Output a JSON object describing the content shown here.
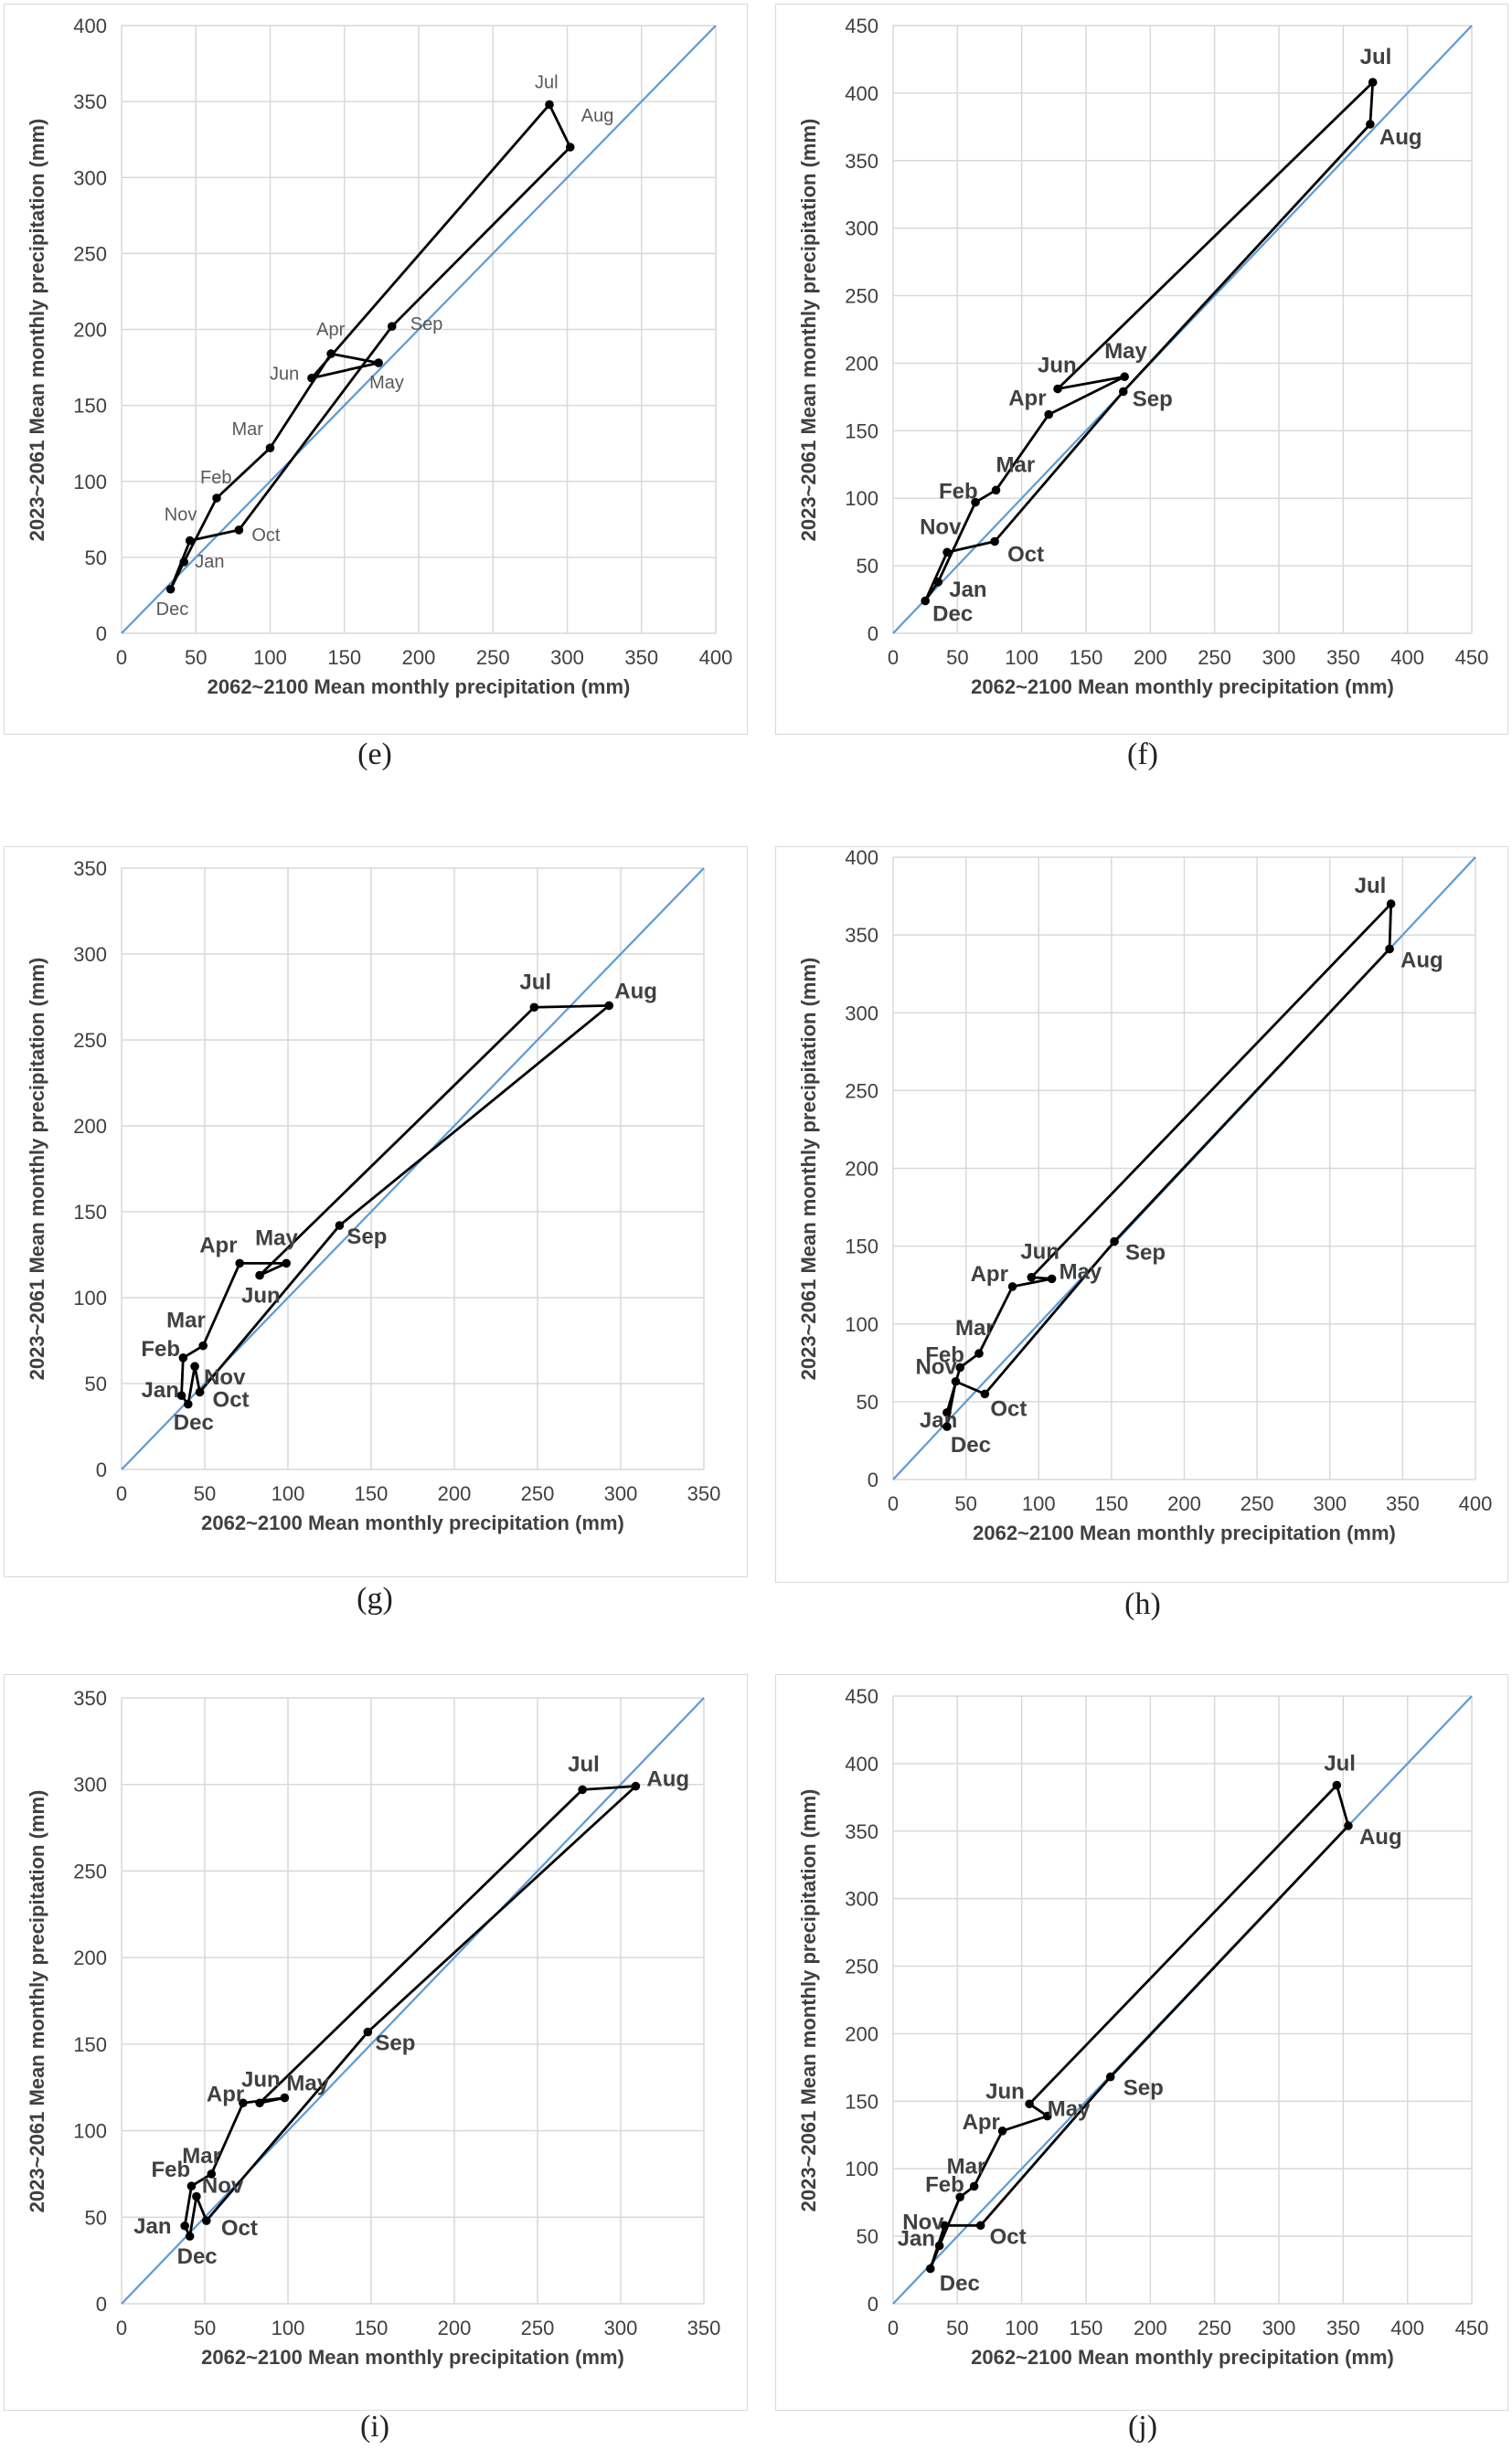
{
  "colors": {
    "grid": "#d9d9d9",
    "diagonal": "#5b9bd5",
    "series": "#000000",
    "axis_text": "#404040"
  },
  "chart_data": [
    {
      "caption": "(e)",
      "type": "scatter",
      "xlabel": "2062~2100 Mean monthly precipitation (mm)",
      "ylabel": "2023~2061 Mean monthly precipitation (mm)",
      "xlim": [
        0,
        400
      ],
      "ylim": [
        0,
        400
      ],
      "step": 50,
      "x_ticks": [
        "0",
        "50",
        "100",
        "150",
        "200",
        "250",
        "300",
        "350",
        "400"
      ],
      "y_ticks": [
        "0",
        "50",
        "100",
        "150",
        "200",
        "250",
        "300",
        "350",
        "400"
      ],
      "label_style": "normal",
      "reference_line": "y = x",
      "points": [
        {
          "label": "Jan",
          "x": 42,
          "y": 47
        },
        {
          "label": "Feb",
          "x": 64,
          "y": 89
        },
        {
          "label": "Mar",
          "x": 100,
          "y": 122
        },
        {
          "label": "Apr",
          "x": 141,
          "y": 184
        },
        {
          "label": "May",
          "x": 173,
          "y": 178
        },
        {
          "label": "Jun",
          "x": 128,
          "y": 168
        },
        {
          "label": "Jul",
          "x": 288,
          "y": 348
        },
        {
          "label": "Aug",
          "x": 302,
          "y": 320
        },
        {
          "label": "Sep",
          "x": 182,
          "y": 202
        },
        {
          "label": "Oct",
          "x": 79,
          "y": 68
        },
        {
          "label": "Nov",
          "x": 46,
          "y": 61
        },
        {
          "label": "Dec",
          "x": 33,
          "y": 29
        }
      ]
    },
    {
      "caption": "(f)",
      "type": "scatter",
      "xlabel": "2062~2100 Mean monthly precipitation (mm)",
      "ylabel": "2023~2061 Mean monthly precipitation (mm)",
      "xlim": [
        0,
        450
      ],
      "ylim": [
        0,
        450
      ],
      "step": 50,
      "x_ticks": [
        "0",
        "50",
        "100",
        "150",
        "200",
        "250",
        "300",
        "350",
        "400",
        "450"
      ],
      "y_ticks": [
        "0",
        "50",
        "100",
        "150",
        "200",
        "250",
        "300",
        "350",
        "400",
        "450"
      ],
      "label_style": "bold",
      "reference_line": "y = x",
      "points": [
        {
          "label": "Jan",
          "x": 35,
          "y": 38
        },
        {
          "label": "Feb",
          "x": 64,
          "y": 97
        },
        {
          "label": "Mar",
          "x": 80,
          "y": 106
        },
        {
          "label": "Apr",
          "x": 121,
          "y": 162
        },
        {
          "label": "May",
          "x": 180,
          "y": 190
        },
        {
          "label": "Jun",
          "x": 128,
          "y": 181
        },
        {
          "label": "Jul",
          "x": 373,
          "y": 408
        },
        {
          "label": "Aug",
          "x": 371,
          "y": 377
        },
        {
          "label": "Sep",
          "x": 179,
          "y": 179
        },
        {
          "label": "Oct",
          "x": 79,
          "y": 68
        },
        {
          "label": "Nov",
          "x": 42,
          "y": 60
        },
        {
          "label": "Dec",
          "x": 25,
          "y": 24
        }
      ]
    },
    {
      "caption": "(g)",
      "type": "scatter",
      "xlabel": "2062~2100 Mean monthly precipitation (mm)",
      "ylabel": "2023~2061 Mean monthly precipitation (mm)",
      "xlim": [
        0,
        350
      ],
      "ylim": [
        0,
        350
      ],
      "step": 50,
      "x_ticks": [
        "0",
        "50",
        "100",
        "150",
        "200",
        "250",
        "300",
        "350"
      ],
      "y_ticks": [
        "0",
        "50",
        "100",
        "150",
        "200",
        "250",
        "300",
        "350"
      ],
      "label_style": "bold",
      "reference_line": "y = x",
      "points": [
        {
          "label": "Jan",
          "x": 36,
          "y": 43
        },
        {
          "label": "Feb",
          "x": 37,
          "y": 65
        },
        {
          "label": "Mar",
          "x": 49,
          "y": 72
        },
        {
          "label": "Apr",
          "x": 71,
          "y": 120
        },
        {
          "label": "May",
          "x": 99,
          "y": 120
        },
        {
          "label": "Jun",
          "x": 83,
          "y": 113
        },
        {
          "label": "Jul",
          "x": 248,
          "y": 269
        },
        {
          "label": "Aug",
          "x": 293,
          "y": 270
        },
        {
          "label": "Sep",
          "x": 131,
          "y": 142
        },
        {
          "label": "Oct",
          "x": 47,
          "y": 45
        },
        {
          "label": "Nov",
          "x": 44,
          "y": 60
        },
        {
          "label": "Dec",
          "x": 40,
          "y": 38
        }
      ]
    },
    {
      "caption": "(h)",
      "type": "scatter",
      "xlabel": "2062~2100 Mean monthly precipitation (mm)",
      "ylabel": "2023~2061 Mean monthly precipitation (mm)",
      "xlim": [
        0,
        400
      ],
      "ylim": [
        0,
        400
      ],
      "step": 50,
      "x_ticks": [
        "0",
        "50",
        "100",
        "150",
        "200",
        "250",
        "300",
        "350",
        "400"
      ],
      "y_ticks": [
        "0",
        "50",
        "100",
        "150",
        "200",
        "250",
        "300",
        "350",
        "400"
      ],
      "label_style": "bold",
      "reference_line": "y = x",
      "points": [
        {
          "label": "Jan",
          "x": 37,
          "y": 43
        },
        {
          "label": "Feb",
          "x": 46,
          "y": 72
        },
        {
          "label": "Mar",
          "x": 59,
          "y": 81
        },
        {
          "label": "Apr",
          "x": 82,
          "y": 124
        },
        {
          "label": "May",
          "x": 109,
          "y": 129
        },
        {
          "label": "Jun",
          "x": 95,
          "y": 130
        },
        {
          "label": "Jul",
          "x": 342,
          "y": 370
        },
        {
          "label": "Aug",
          "x": 341,
          "y": 341
        },
        {
          "label": "Sep",
          "x": 152,
          "y": 153
        },
        {
          "label": "Oct",
          "x": 63,
          "y": 55
        },
        {
          "label": "Nov",
          "x": 43,
          "y": 63
        },
        {
          "label": "Dec",
          "x": 37,
          "y": 34
        }
      ]
    },
    {
      "caption": "(i)",
      "type": "scatter",
      "xlabel": "2062~2100 Mean monthly precipitation (mm)",
      "ylabel": "2023~2061 Mean monthly precipitation (mm)",
      "xlim": [
        0,
        350
      ],
      "ylim": [
        0,
        350
      ],
      "step": 50,
      "x_ticks": [
        "0",
        "50",
        "100",
        "150",
        "200",
        "250",
        "300",
        "350"
      ],
      "y_ticks": [
        "0",
        "50",
        "100",
        "150",
        "200",
        "250",
        "300",
        "350"
      ],
      "label_style": "bold",
      "reference_line": "y = x",
      "points": [
        {
          "label": "Jan",
          "x": 38,
          "y": 45
        },
        {
          "label": "Feb",
          "x": 42,
          "y": 68
        },
        {
          "label": "Mar",
          "x": 54,
          "y": 75
        },
        {
          "label": "Apr",
          "x": 73,
          "y": 116
        },
        {
          "label": "May",
          "x": 98,
          "y": 119
        },
        {
          "label": "Jun",
          "x": 83,
          "y": 116
        },
        {
          "label": "Jul",
          "x": 277,
          "y": 297
        },
        {
          "label": "Aug",
          "x": 309,
          "y": 299
        },
        {
          "label": "Sep",
          "x": 148,
          "y": 157
        },
        {
          "label": "Oct",
          "x": 51,
          "y": 48
        },
        {
          "label": "Nov",
          "x": 45,
          "y": 62
        },
        {
          "label": "Dec",
          "x": 41,
          "y": 39
        }
      ]
    },
    {
      "caption": "(j)",
      "type": "scatter",
      "xlabel": "2062~2100 Mean monthly precipitation (mm)",
      "ylabel": "2023~2061 Mean monthly precipitation (mm)",
      "xlim": [
        0,
        450
      ],
      "ylim": [
        0,
        450
      ],
      "step": 50,
      "x_ticks": [
        "0",
        "50",
        "100",
        "150",
        "200",
        "250",
        "300",
        "350",
        "400",
        "450"
      ],
      "y_ticks": [
        "0",
        "50",
        "100",
        "150",
        "200",
        "250",
        "300",
        "350",
        "400",
        "450"
      ],
      "label_style": "bold",
      "reference_line": "y = x",
      "points": [
        {
          "label": "Jan",
          "x": 36,
          "y": 43
        },
        {
          "label": "Feb",
          "x": 52,
          "y": 79
        },
        {
          "label": "Mar",
          "x": 63,
          "y": 87
        },
        {
          "label": "Apr",
          "x": 85,
          "y": 128
        },
        {
          "label": "May",
          "x": 120,
          "y": 139
        },
        {
          "label": "Jun",
          "x": 106,
          "y": 148
        },
        {
          "label": "Jul",
          "x": 345,
          "y": 384
        },
        {
          "label": "Aug",
          "x": 354,
          "y": 354
        },
        {
          "label": "Sep",
          "x": 169,
          "y": 168
        },
        {
          "label": "Oct",
          "x": 68,
          "y": 58
        },
        {
          "label": "Nov",
          "x": 40,
          "y": 58
        },
        {
          "label": "Dec",
          "x": 29,
          "y": 26
        }
      ]
    }
  ]
}
